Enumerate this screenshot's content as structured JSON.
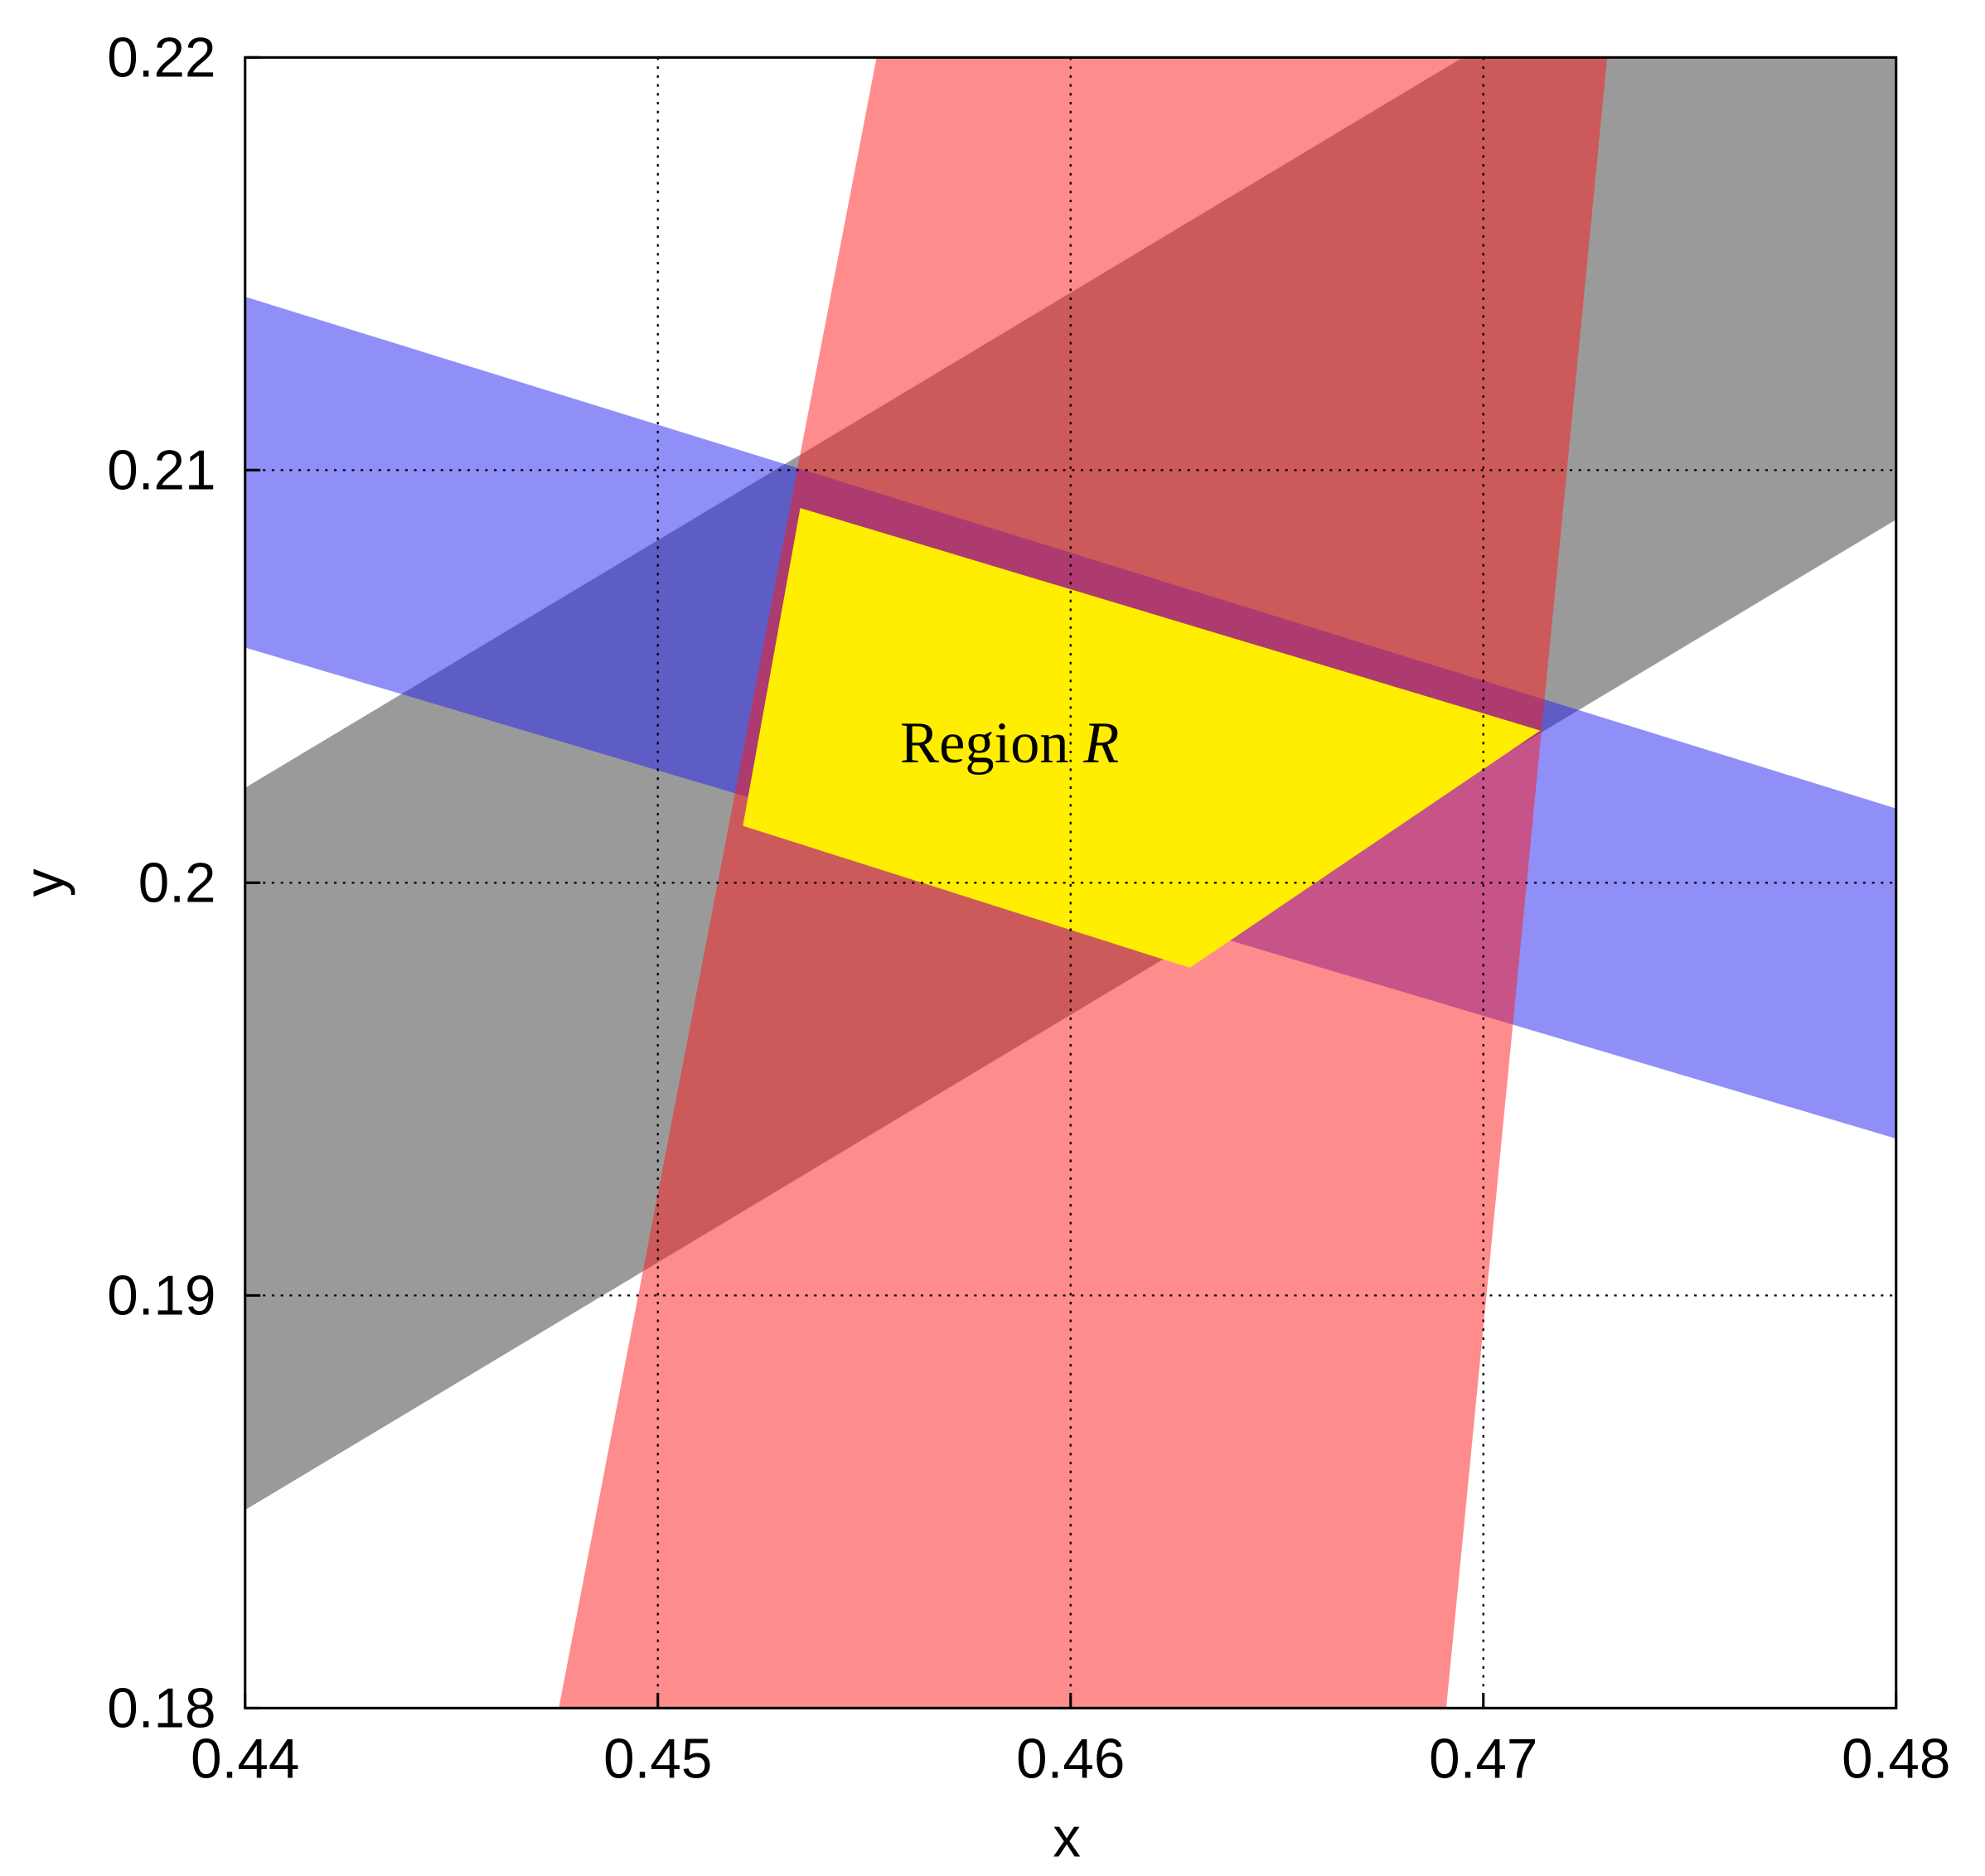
{
  "chart_data": {
    "type": "polygon",
    "xlabel": "x",
    "ylabel": "y",
    "xlim": [
      0.44,
      0.48
    ],
    "ylim": [
      0.18,
      0.22
    ],
    "xticks": [
      0.44,
      0.45,
      0.46,
      0.47,
      0.48
    ],
    "yticks": [
      0.18,
      0.19,
      0.2,
      0.21,
      0.22
    ],
    "grid": true,
    "regions": [
      {
        "color": "#202020",
        "opacity": 0.45,
        "x": [
          0.44,
          0.4695,
          0.48,
          0.48,
          0.44
        ],
        "y": [
          0.2023,
          0.22,
          0.22,
          0.2088,
          0.1848
        ]
      },
      {
        "color": "#2020f0",
        "opacity": 0.5,
        "x": [
          0.44,
          0.48,
          0.48,
          0.44
        ],
        "y": [
          0.2142,
          0.2018,
          0.1938,
          0.2057
        ]
      },
      {
        "color": "#ff1a1a",
        "opacity": 0.5,
        "x": [
          0.4476,
          0.4553,
          0.473,
          0.4691
        ],
        "y": [
          0.18,
          0.22,
          0.22,
          0.18
        ]
      },
      {
        "color": "#ffee00",
        "opacity": 1,
        "x": [
          0.45345,
          0.47138,
          0.46289,
          0.45206
        ],
        "y": [
          0.20908,
          0.20369,
          0.19794,
          0.20138
        ]
      }
    ],
    "annotation": {
      "text": "Region",
      "variable": "R"
    }
  }
}
